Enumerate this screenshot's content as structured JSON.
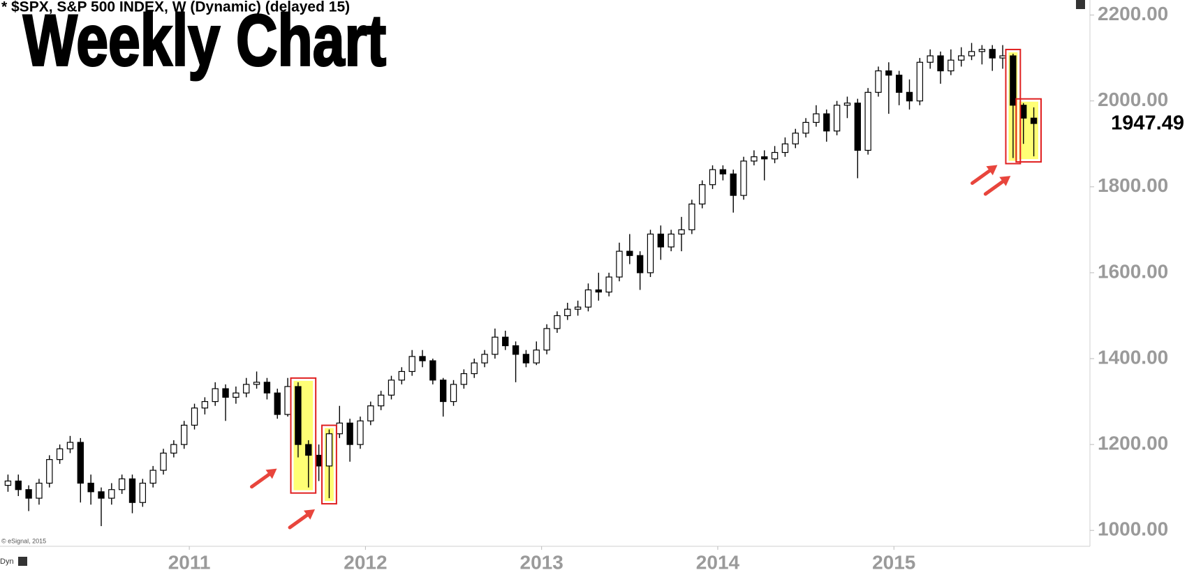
{
  "chart_data": {
    "type": "candlestick",
    "title": "* $SPX, S&P 500 INDEX, W (Dynamic) (delayed 15)",
    "subtitle": "Weekly Chart",
    "annotations": [
      "© eSignal, 2015",
      "Dyn"
    ],
    "categories": [
      null,
      null,
      null,
      null,
      null,
      null,
      null,
      null,
      null,
      null,
      null,
      null,
      null,
      null,
      null,
      null,
      null,
      null,
      "2011",
      null,
      null,
      null,
      null,
      null,
      null,
      null,
      null,
      null,
      null,
      null,
      null,
      null,
      null,
      null,
      null,
      "2012",
      null,
      null,
      null,
      null,
      null,
      null,
      null,
      null,
      null,
      null,
      null,
      null,
      null,
      null,
      null,
      null,
      "2013",
      null,
      null,
      null,
      null,
      null,
      null,
      null,
      null,
      null,
      null,
      null,
      null,
      null,
      null,
      null,
      null,
      "2014",
      null,
      null,
      null,
      null,
      null,
      null,
      null,
      null,
      null,
      null,
      null,
      null,
      null,
      null,
      null,
      null,
      "2015",
      null,
      null,
      null,
      null,
      null,
      null,
      null,
      null,
      null,
      null,
      null,
      null,
      null
    ],
    "ohlc": {
      "open": [
        1105,
        1115,
        1095,
        1075,
        1110,
        1165,
        1190,
        1205,
        1110,
        1090,
        1075,
        1095,
        1120,
        1065,
        1110,
        1140,
        1180,
        1200,
        1245,
        1285,
        1300,
        1330,
        1310,
        1320,
        1340,
        1345,
        1320,
        1270,
        1335,
        1200,
        1175,
        1150,
        1225,
        1250,
        1200,
        1255,
        1290,
        1315,
        1350,
        1370,
        1405,
        1395,
        1350,
        1300,
        1340,
        1365,
        1390,
        1410,
        1450,
        1430,
        1410,
        1390,
        1420,
        1470,
        1500,
        1515,
        1520,
        1560,
        1555,
        1590,
        1650,
        1640,
        1600,
        1690,
        1660,
        1690,
        1700,
        1760,
        1805,
        1840,
        1830,
        1780,
        1860,
        1870,
        1865,
        1880,
        1900,
        1925,
        1950,
        1970,
        1930,
        1990,
        1995,
        1885,
        2020,
        2070,
        2060,
        2020,
        2000,
        2090,
        2105,
        2070,
        2095,
        2105,
        2115,
        2120,
        2100,
        2105,
        1990,
        1960
      ],
      "high": [
        1130,
        1130,
        1105,
        1120,
        1175,
        1200,
        1220,
        1215,
        1130,
        1100,
        1110,
        1130,
        1130,
        1120,
        1150,
        1190,
        1210,
        1255,
        1295,
        1310,
        1345,
        1340,
        1335,
        1355,
        1370,
        1355,
        1330,
        1355,
        1345,
        1210,
        1200,
        1235,
        1290,
        1260,
        1265,
        1300,
        1325,
        1360,
        1380,
        1420,
        1420,
        1400,
        1355,
        1350,
        1375,
        1400,
        1420,
        1470,
        1465,
        1440,
        1420,
        1440,
        1480,
        1510,
        1530,
        1535,
        1575,
        1600,
        1600,
        1670,
        1690,
        1650,
        1700,
        1710,
        1700,
        1730,
        1770,
        1815,
        1850,
        1850,
        1840,
        1870,
        1885,
        1885,
        1895,
        1915,
        1935,
        1960,
        1990,
        1980,
        2000,
        2010,
        2005,
        2030,
        2080,
        2090,
        2070,
        2050,
        2100,
        2120,
        2115,
        2120,
        2125,
        2135,
        2130,
        2130,
        2130,
        2110,
        1995,
        1985
      ],
      "low": [
        1090,
        1080,
        1045,
        1060,
        1100,
        1155,
        1180,
        1065,
        1060,
        1010,
        1060,
        1085,
        1040,
        1055,
        1100,
        1130,
        1170,
        1190,
        1235,
        1270,
        1290,
        1255,
        1295,
        1310,
        1330,
        1305,
        1260,
        1265,
        1170,
        1100,
        1115,
        1075,
        1215,
        1160,
        1190,
        1245,
        1280,
        1305,
        1340,
        1360,
        1380,
        1340,
        1265,
        1290,
        1330,
        1355,
        1380,
        1400,
        1420,
        1345,
        1380,
        1385,
        1410,
        1460,
        1490,
        1500,
        1510,
        1535,
        1545,
        1580,
        1620,
        1560,
        1590,
        1630,
        1650,
        1650,
        1690,
        1750,
        1795,
        1815,
        1740,
        1770,
        1850,
        1815,
        1855,
        1870,
        1890,
        1915,
        1940,
        1905,
        1920,
        1960,
        1820,
        1875,
        2010,
        1970,
        1990,
        1980,
        1990,
        2075,
        2040,
        2060,
        2080,
        2095,
        2085,
        2070,
        2075,
        1867,
        1900,
        1871
      ],
      "close": [
        1115,
        1095,
        1075,
        1110,
        1165,
        1190,
        1205,
        1110,
        1090,
        1075,
        1095,
        1120,
        1065,
        1110,
        1140,
        1180,
        1200,
        1245,
        1285,
        1300,
        1330,
        1310,
        1320,
        1340,
        1345,
        1320,
        1270,
        1335,
        1200,
        1175,
        1150,
        1225,
        1250,
        1200,
        1255,
        1290,
        1315,
        1350,
        1370,
        1405,
        1395,
        1350,
        1300,
        1340,
        1365,
        1390,
        1410,
        1450,
        1430,
        1410,
        1390,
        1420,
        1470,
        1500,
        1515,
        1520,
        1560,
        1555,
        1590,
        1650,
        1640,
        1600,
        1690,
        1660,
        1690,
        1700,
        1760,
        1805,
        1840,
        1830,
        1780,
        1860,
        1870,
        1865,
        1880,
        1900,
        1925,
        1950,
        1970,
        1930,
        1990,
        1995,
        1885,
        2020,
        2070,
        2060,
        2020,
        2000,
        2090,
        2105,
        2070,
        2095,
        2105,
        2115,
        2120,
        2100,
        2105,
        1990,
        1960,
        1947.49
      ]
    },
    "up_color": "#ffffff",
    "down_color": "#000000",
    "ylim": [
      963,
      2235
    ],
    "yticks": [
      {
        "value": 1000,
        "label": "1000.00"
      },
      {
        "value": 1200,
        "label": "1200.00"
      },
      {
        "value": 1400,
        "label": "1400.00"
      },
      {
        "value": 1600,
        "label": "1600.00"
      },
      {
        "value": 1800,
        "label": "1800.00"
      },
      {
        "value": 2000,
        "label": "2000.00"
      },
      {
        "value": 2200,
        "label": "2200.00"
      }
    ],
    "grid": false
  }
}
